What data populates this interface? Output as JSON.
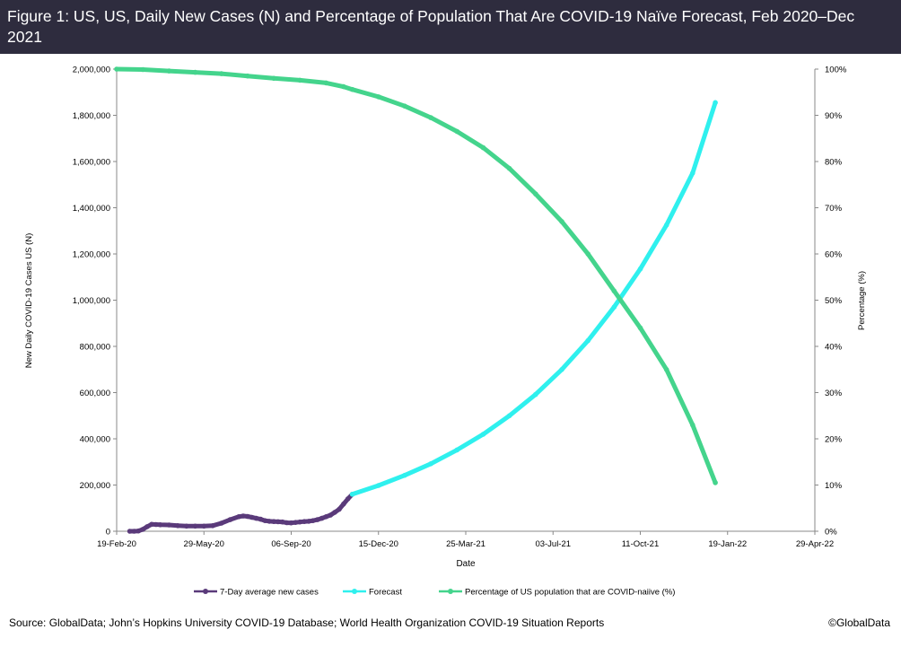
{
  "header": {
    "title": "Figure 1: US, US, Daily New Cases (N) and Percentage of Population That Are COVID-19 Naïve Forecast, Feb 2020–Dec 2021"
  },
  "footer": {
    "source": "Source: GlobalData; John’s Hopkins University COVID-19 Database; World Health Organization COVID-19 Situation Reports",
    "copyright": "©GlobalData"
  },
  "colors": {
    "banner": "#2e2c3e",
    "cases": "#5a3a7a",
    "forecast": "#2ff0ee",
    "naive": "#44d48c"
  },
  "chart_data": {
    "type": "line",
    "title": "Figure 1: US, US, Daily New Cases (N) and Percentage of Population That Are COVID-19 Naïve Forecast, Feb 2020–Dec 2021",
    "xlabel": "Date",
    "ylabel": "New Daily COVID-19 Cases US (N)",
    "y2label": "Percentage (%)",
    "x_unit": "days since 19-Feb-20",
    "xlim": [
      0,
      800
    ],
    "ylim": [
      0,
      2000000
    ],
    "y2lim": [
      0,
      100
    ],
    "x_ticks": [
      {
        "value": 0,
        "label": "19-Feb-20"
      },
      {
        "value": 100,
        "label": "29-May-20"
      },
      {
        "value": 200,
        "label": "06-Sep-20"
      },
      {
        "value": 300,
        "label": "15-Dec-20"
      },
      {
        "value": 400,
        "label": "25-Mar-21"
      },
      {
        "value": 500,
        "label": "03-Jul-21"
      },
      {
        "value": 600,
        "label": "11-Oct-21"
      },
      {
        "value": 700,
        "label": "19-Jan-22"
      },
      {
        "value": 800,
        "label": "29-Apr-22"
      }
    ],
    "y_ticks": [
      {
        "value": 0,
        "label": "0"
      },
      {
        "value": 200000,
        "label": "200,000"
      },
      {
        "value": 400000,
        "label": "400,000"
      },
      {
        "value": 600000,
        "label": "600,000"
      },
      {
        "value": 800000,
        "label": "800,000"
      },
      {
        "value": 1000000,
        "label": "1,000,000"
      },
      {
        "value": 1200000,
        "label": "1,200,000"
      },
      {
        "value": 1400000,
        "label": "1,400,000"
      },
      {
        "value": 1600000,
        "label": "1,600,000"
      },
      {
        "value": 1800000,
        "label": "1,800,000"
      },
      {
        "value": 2000000,
        "label": "2,000,000"
      }
    ],
    "y2_ticks": [
      {
        "value": 0,
        "label": "0%"
      },
      {
        "value": 10,
        "label": "10%"
      },
      {
        "value": 20,
        "label": "20%"
      },
      {
        "value": 30,
        "label": "30%"
      },
      {
        "value": 40,
        "label": "40%"
      },
      {
        "value": 50,
        "label": "50%"
      },
      {
        "value": 60,
        "label": "60%"
      },
      {
        "value": 70,
        "label": "70%"
      },
      {
        "value": 80,
        "label": "80%"
      },
      {
        "value": 90,
        "label": "90%"
      },
      {
        "value": 100,
        "label": "100%"
      }
    ],
    "series": [
      {
        "name": "7-Day average new cases",
        "axis": "left",
        "color": "#5a3a7a",
        "x": [
          15,
          20,
          25,
          30,
          35,
          40,
          45,
          50,
          60,
          70,
          80,
          90,
          100,
          110,
          120,
          130,
          140,
          145,
          150,
          155,
          160,
          165,
          170,
          175,
          180,
          185,
          190,
          195,
          200,
          205,
          210,
          215,
          220,
          225,
          230,
          235,
          240,
          245,
          250,
          255,
          260,
          265,
          270
        ],
        "y": [
          0,
          0,
          1000,
          8000,
          20000,
          30000,
          29000,
          28000,
          27000,
          24000,
          22000,
          22000,
          22000,
          24000,
          35000,
          50000,
          63000,
          66000,
          64000,
          60000,
          56000,
          52000,
          46000,
          43000,
          42000,
          41000,
          40000,
          37000,
          36000,
          38000,
          40000,
          42000,
          43000,
          46000,
          50000,
          56000,
          63000,
          70000,
          82000,
          95000,
          118000,
          140000,
          160000
        ]
      },
      {
        "name": "Forecast",
        "axis": "left",
        "color": "#2ff0ee",
        "x": [
          270,
          300,
          330,
          360,
          390,
          420,
          450,
          480,
          510,
          540,
          570,
          600,
          630,
          660,
          686
        ],
        "y": [
          160000,
          198000,
          242000,
          292000,
          352000,
          420000,
          500000,
          592000,
          700000,
          825000,
          970000,
          1135000,
          1325000,
          1550000,
          1855000
        ]
      },
      {
        "name": "Percentage of US population that are COVID-naiive (%)",
        "axis": "right",
        "color": "#44d48c",
        "x": [
          0,
          30,
          60,
          90,
          120,
          150,
          180,
          210,
          240,
          260,
          270,
          300,
          330,
          360,
          390,
          420,
          450,
          480,
          510,
          540,
          570,
          600,
          630,
          660,
          686
        ],
        "y": [
          100,
          99.9,
          99.6,
          99.3,
          99.0,
          98.5,
          98.0,
          97.6,
          97.0,
          96.2,
          95.6,
          94.0,
          92.0,
          89.5,
          86.5,
          83.0,
          78.5,
          73.0,
          67.0,
          60.0,
          52.0,
          44.0,
          35.0,
          23.0,
          10.5
        ]
      }
    ],
    "legend_position": "bottom"
  }
}
